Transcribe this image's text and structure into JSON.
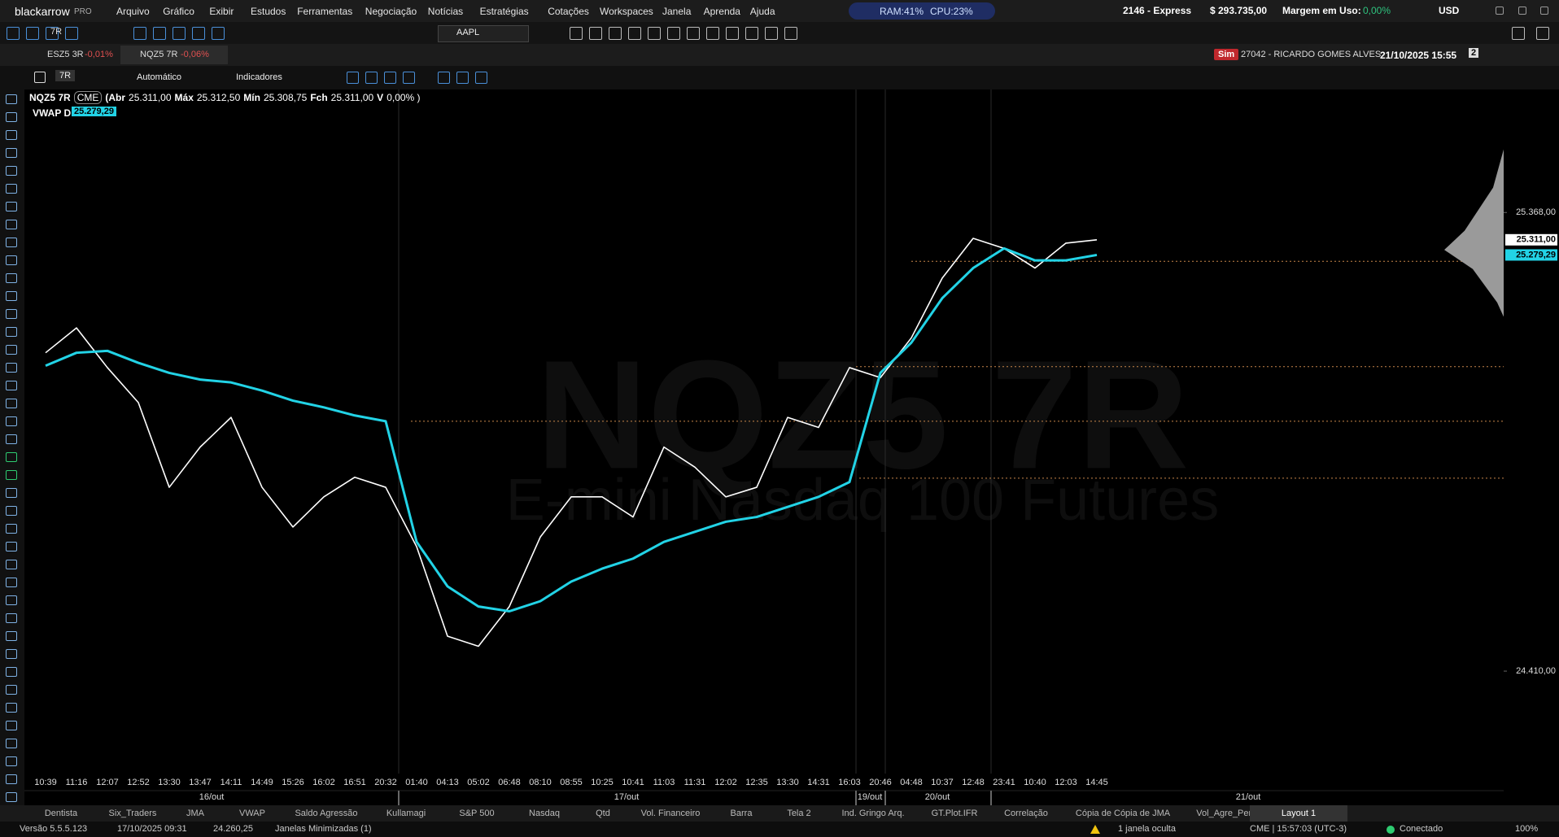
{
  "header": {
    "brand": "blackarrow",
    "brand_suffix": "PRO",
    "menu": [
      "Arquivo",
      "Gráfico",
      "Exibir",
      "Estudos",
      "Ferramentas",
      "Negociação",
      "Notícias",
      "Estratégias",
      "Cotações",
      "Workspaces",
      "Janela",
      "Aprenda",
      "Ajuda"
    ],
    "ram": "RAM:41%",
    "cpu": "CPU:23%",
    "account": "2146 - Express",
    "balance": "$ 293.735,00",
    "margin_label": "Margem em Uso:",
    "margin_value": "0,00%",
    "currency": "USD"
  },
  "toolbar": {
    "period": "7R",
    "symbol": "AAPL"
  },
  "tabs": [
    {
      "name": "ESZ5 3R",
      "change": "-0,01%"
    },
    {
      "name": "NQZ5 7R",
      "change": "-0,06%"
    }
  ],
  "session": {
    "mode": "Sim",
    "user": "27042 - RICARDO GOMES ALVES",
    "datetime": "21/10/2025 15:55",
    "windows": "2"
  },
  "chart_toolbar": {
    "period": "7R",
    "scale_mode": "Automático",
    "indicators": "Indicadores"
  },
  "legend": {
    "exchange": "CME",
    "ohlc": [
      {
        "label": "(Abr",
        "value": "25.311,00"
      },
      {
        "label": "Máx",
        "value": "25.312,50"
      },
      {
        "label": "Mín",
        "value": "25.308,75"
      },
      {
        "label": "Fch",
        "value": "25.311,00"
      },
      {
        "label": "V",
        "value": "0,00% )"
      }
    ]
  },
  "chart_data": {
    "type": "line",
    "watermark": "NQZ5 7R",
    "watermark_sub": "E-mini Nasdaq 100 Futures",
    "categories": [
      "10:39",
      "11:16",
      "12:07",
      "12:52",
      "13:30",
      "13:47",
      "14:11",
      "14:49",
      "15:26",
      "16:02",
      "16:51",
      "20:32",
      "01:40",
      "04:13",
      "05:02",
      "06:48",
      "08:10",
      "08:55",
      "10:25",
      "10:41",
      "11:03",
      "11:31",
      "12:02",
      "12:35",
      "13:30",
      "14:31",
      "16:03",
      "20:46",
      "04:48",
      "10:37",
      "12:48",
      "23:41",
      "10:40",
      "12:03",
      "14:45"
    ],
    "dates": [
      "16/out",
      "17/out",
      "19/out",
      "20/out",
      "21/out"
    ],
    "series": [
      {
        "name": "NQZ5 7R",
        "color": "#ffffff",
        "values": [
          25075,
          25127,
          25044,
          24971,
          24794,
          24878,
          24940,
          24794,
          24711,
          24774,
          24815,
          24794,
          24670,
          24483,
          24462,
          24545,
          24690,
          24774,
          24774,
          24732,
          24878,
          24836,
          24774,
          24794,
          24940,
          24919,
          25044,
          25023,
          25106,
          25231,
          25314,
          25293,
          25252,
          25304,
          25311
        ]
      },
      {
        "name": "VWAP D",
        "color": "#22d3e6",
        "values": [
          25048,
          25075,
          25079,
          25054,
          25033,
          25019,
          25013,
          24996,
          24975,
          24961,
          24944,
          24932,
          24680,
          24587,
          24545,
          24535,
          24556,
          24597,
          24624,
          24645,
          24680,
          24701,
          24722,
          24732,
          24753,
          24774,
          24805,
          25033,
          25096,
          25189,
          25252,
          25293,
          25268,
          25268,
          25279.29
        ]
      }
    ],
    "levels": [
      25266,
      25046,
      24932,
      24813
    ],
    "markers": [
      {
        "value": 25311,
        "label": "25.311,00"
      },
      {
        "value": 25279.29,
        "label": "25.279,29"
      }
    ],
    "ylim": [
      24196,
      25625
    ],
    "yticks": [
      {
        "value": 24410,
        "label": "24.410,00"
      },
      {
        "value": 25368,
        "label": "25.368,00"
      }
    ]
  },
  "bottom_tabs": [
    "Dentista",
    "Six_Traders",
    "JMA",
    "VWAP",
    "Saldo Agressão",
    "Kullamagi",
    "S&P 500",
    "Nasdaq",
    "Qtd",
    "Vol. Financeiro",
    "Barra",
    "Tela 2",
    "Ind. Gringo Arq.",
    "GT.Plot.IFR",
    "Correlação",
    "Cópia de Cópia de JMA",
    "Vol_Agre_Perc",
    "Layout 1"
  ],
  "status": {
    "version": "Versão 5.5.5.123",
    "date": "17/10/2025 09:31",
    "price": "24.260,25",
    "minimized": "Janelas Minimizadas (1)",
    "hidden": "1 janela oculta",
    "clock": "CME | 15:57:03 (UTC-3)",
    "connection": "Conectado",
    "zoom": "100%"
  }
}
